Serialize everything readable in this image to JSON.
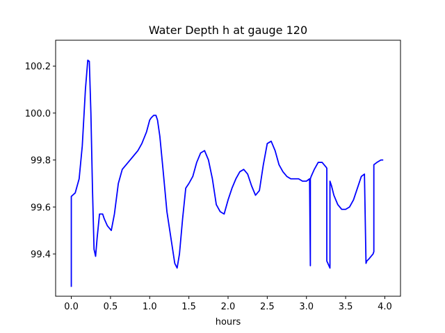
{
  "chart_data": {
    "type": "line",
    "title": "Water Depth h at gauge 120",
    "xlabel": "hours",
    "ylabel": "",
    "xlim": [
      -0.2,
      4.2
    ],
    "ylim": [
      99.22,
      100.31
    ],
    "xticks": [
      0.0,
      0.5,
      1.0,
      1.5,
      2.0,
      2.5,
      3.0,
      3.5,
      4.0
    ],
    "xtick_labels": [
      "0.0",
      "0.5",
      "1.0",
      "1.5",
      "2.0",
      "2.5",
      "3.0",
      "3.5",
      "4.0"
    ],
    "yticks": [
      99.4,
      99.6,
      99.8,
      100.0,
      100.2
    ],
    "ytick_labels": [
      "99.4",
      "99.6",
      "99.8",
      "100.0",
      "100.2"
    ],
    "grid": false,
    "legend": "none",
    "series": [
      {
        "color": "#0000ff",
        "x": [
          0.0,
          0.0,
          0.05,
          0.1,
          0.14,
          0.18,
          0.21,
          0.23,
          0.25,
          0.27,
          0.29,
          0.31,
          0.33,
          0.36,
          0.4,
          0.42,
          0.46,
          0.51,
          0.55,
          0.6,
          0.65,
          0.7,
          0.75,
          0.8,
          0.85,
          0.9,
          0.96,
          1.0,
          1.02,
          1.05,
          1.08,
          1.1,
          1.13,
          1.17,
          1.22,
          1.27,
          1.32,
          1.35,
          1.38,
          1.42,
          1.46,
          1.5,
          1.55,
          1.6,
          1.65,
          1.7,
          1.75,
          1.8,
          1.85,
          1.9,
          1.95,
          2.0,
          2.05,
          2.1,
          2.15,
          2.2,
          2.25,
          2.3,
          2.35,
          2.4,
          2.45,
          2.5,
          2.55,
          2.6,
          2.65,
          2.7,
          2.75,
          2.8,
          2.85,
          2.9,
          2.95,
          3.0,
          3.04,
          3.05,
          3.05,
          3.06,
          3.1,
          3.15,
          3.2,
          3.25,
          3.26,
          3.26,
          3.3,
          3.3,
          3.32,
          3.35,
          3.4,
          3.45,
          3.5,
          3.55,
          3.6,
          3.65,
          3.7,
          3.74,
          3.76,
          3.77,
          3.8,
          3.85,
          3.86,
          3.86,
          3.9,
          3.95,
          3.98
        ],
        "y": [
          99.26,
          99.645,
          99.66,
          99.72,
          99.86,
          100.1,
          100.225,
          100.22,
          100.0,
          99.68,
          99.42,
          99.39,
          99.47,
          99.57,
          99.57,
          99.55,
          99.52,
          99.5,
          99.57,
          99.7,
          99.76,
          99.78,
          99.8,
          99.82,
          99.84,
          99.87,
          99.92,
          99.97,
          99.98,
          99.99,
          99.99,
          99.97,
          99.9,
          99.76,
          99.58,
          99.47,
          99.36,
          99.34,
          99.4,
          99.55,
          99.68,
          99.7,
          99.73,
          99.79,
          99.83,
          99.84,
          99.8,
          99.72,
          99.61,
          99.58,
          99.57,
          99.63,
          99.68,
          99.72,
          99.75,
          99.76,
          99.74,
          99.69,
          99.65,
          99.67,
          99.78,
          99.87,
          99.88,
          99.84,
          99.78,
          99.75,
          99.73,
          99.72,
          99.72,
          99.72,
          99.71,
          99.71,
          99.72,
          99.35,
          99.72,
          99.73,
          99.76,
          99.79,
          99.79,
          99.77,
          99.765,
          99.37,
          99.34,
          99.71,
          99.69,
          99.65,
          99.61,
          99.59,
          99.59,
          99.6,
          99.63,
          99.68,
          99.73,
          99.74,
          99.36,
          99.37,
          99.38,
          99.4,
          99.41,
          99.78,
          99.79,
          99.8,
          99.8
        ]
      }
    ]
  }
}
